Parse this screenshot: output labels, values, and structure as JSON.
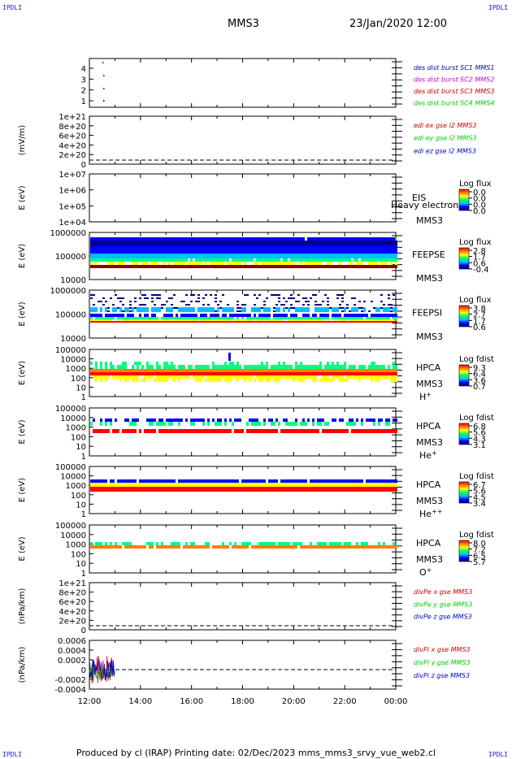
{
  "corners": {
    "tl": "IPDLI",
    "tr": "IPDLI",
    "bl": "IPDLI",
    "br": "IPDLI"
  },
  "header": {
    "spacecraft": "MMS3",
    "date": "23/Jan/2020 12:00"
  },
  "footer": {
    "text": "Produced by cl (IRAP)   Printing date: 02/Dec/2023   mms_mms3_srvy_vue_web2.cl"
  },
  "colors": {
    "cbar": [
      "#00008b",
      "#0000ff",
      "#00bfff",
      "#00ff80",
      "#ffff00",
      "#ff8000",
      "#ff0000",
      "#8b0000"
    ]
  },
  "chart_data": [
    {
      "type": "scatter",
      "title": "",
      "ylabel": "",
      "yticks": [
        "1",
        "2",
        "3",
        "4"
      ],
      "legend": [
        {
          "text": "des dist burst SC1 MMS1",
          "color": "#0000cc"
        },
        {
          "text": "des dist burst SC2 MMS2",
          "color": "#cc00cc"
        },
        {
          "text": "des dist burst SC3 MMS3",
          "color": "#cc0000"
        },
        {
          "text": "des dist burst SC4 MMS4",
          "color": "#00cc00"
        }
      ]
    },
    {
      "type": "line",
      "ylabel": "(mV/m)",
      "yticks": [
        "0",
        "2e+20",
        "4e+20",
        "6e+20",
        "8e+20",
        "1e+21"
      ],
      "legend": [
        {
          "text": "edi ex gse l2 MMS3",
          "color": "#cc0000"
        },
        {
          "text": "edi ey gse l2 MMS3",
          "color": "#00cc00"
        },
        {
          "text": "edi ez gse l2 MMS3",
          "color": "#0000cc"
        }
      ]
    },
    {
      "type": "heatmap",
      "ylabel": "E (eV)",
      "yticks": [
        "1e+04",
        "1e+05",
        "1e+06",
        "1e+07"
      ],
      "inst": "EIS",
      "sc": "MMS3",
      "species": "",
      "overlay": "Heavy electron tc",
      "cbar_title": "Log flux",
      "cbar_ticks": [
        "0.0",
        "0.0",
        "0.0",
        "0.0"
      ]
    },
    {
      "type": "heatmap",
      "ylabel": "E (eV)",
      "yticks": [
        "10000",
        "100000",
        "1000000"
      ],
      "inst": "FEEPSE",
      "sc": "MMS3",
      "species": "",
      "cbar_title": "Log flux",
      "cbar_ticks": [
        "2.8",
        "1.7",
        "0.6",
        "-0.4"
      ]
    },
    {
      "type": "heatmap",
      "ylabel": "E (eV)",
      "yticks": [
        "10000",
        "100000",
        "1000000"
      ],
      "inst": "FEEPSI",
      "sc": "MMS3",
      "species": "",
      "cbar_title": "Log flux",
      "cbar_ticks": [
        "3.8",
        "2.7",
        "1.7",
        "0.6"
      ]
    },
    {
      "type": "heatmap",
      "ylabel": "E (eV)",
      "yticks": [
        "1",
        "10",
        "100",
        "1000",
        "10000",
        "100000"
      ],
      "inst": "HPCA",
      "sc": "MMS3",
      "species": "H",
      "species_sup": "+",
      "cbar_title": "Log fdist",
      "cbar_ticks": [
        "9.3",
        "6.4",
        "3.6",
        "0.7"
      ]
    },
    {
      "type": "heatmap",
      "ylabel": "E (eV)",
      "yticks": [
        "1",
        "10",
        "100",
        "1000",
        "10000",
        "100000"
      ],
      "inst": "HPCA",
      "sc": "MMS3",
      "species": "He",
      "species_sup": "+",
      "cbar_title": "Log fdist",
      "cbar_ticks": [
        "6.8",
        "5.6",
        "4.3",
        "3.1"
      ]
    },
    {
      "type": "heatmap",
      "ylabel": "E (eV)",
      "yticks": [
        "1",
        "10",
        "100",
        "1000",
        "10000",
        "100000"
      ],
      "inst": "HPCA",
      "sc": "MMS3",
      "species": "He",
      "species_sup": "++",
      "cbar_title": "Log fdist",
      "cbar_ticks": [
        "6.7",
        "5.6",
        "4.5",
        "3.4"
      ]
    },
    {
      "type": "heatmap",
      "ylabel": "E (eV)",
      "yticks": [
        "1",
        "10",
        "100",
        "1000",
        "10000",
        "100000"
      ],
      "inst": "HPCA",
      "sc": "MMS3",
      "species": "O",
      "species_sup": "+",
      "cbar_title": "Log fdist",
      "cbar_ticks": [
        "8.0",
        "7.2",
        "6.5",
        "5.7"
      ]
    },
    {
      "type": "line",
      "ylabel": "(nPa/km)",
      "yticks": [
        "0",
        "2e+20",
        "4e+20",
        "6e+20",
        "8e+20",
        "1e+21"
      ],
      "legend": [
        {
          "text": "divPe x gse MMS3",
          "color": "#cc0000"
        },
        {
          "text": "divPe y gse MMS3",
          "color": "#00cc00"
        },
        {
          "text": "divPe z gse MMS3",
          "color": "#0000cc"
        }
      ]
    },
    {
      "type": "line",
      "ylabel": "(nPa/km)",
      "yticks": [
        "-0.0004",
        "-0.0002",
        "0",
        "0.0002",
        "0.0004",
        "0.0006"
      ],
      "legend": [
        {
          "text": "divPi x gse MMS3",
          "color": "#cc0000"
        },
        {
          "text": "divPi y gse MMS3",
          "color": "#00cc00"
        },
        {
          "text": "divPi z gse MMS3",
          "color": "#0000cc"
        }
      ]
    }
  ],
  "xaxis": {
    "ticks": [
      "12:00",
      "14:00",
      "16:00",
      "18:00",
      "20:00",
      "22:00",
      "00:00"
    ]
  }
}
